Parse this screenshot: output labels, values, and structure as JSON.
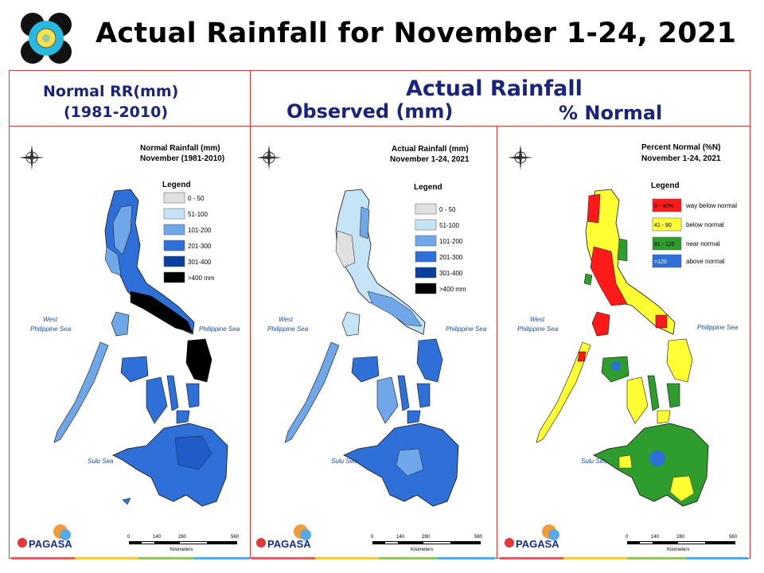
{
  "header": {
    "title": "Actual Rainfall for November 1-24, 2021",
    "logo_icon": "pagasa-emblem-icon"
  },
  "columns": {
    "normal_title_line1": "Normal RR(mm)",
    "normal_title_line2": "(1981-2010)",
    "actual_title": "Actual Rainfall",
    "observed_title": "Observed (mm)",
    "percent_title": "% Normal"
  },
  "maps": [
    {
      "id": "normal",
      "title_line1": "Normal Rainfall (mm)",
      "title_line2": "November (1981-2010)",
      "legend_title": "Legend",
      "legend": [
        {
          "label": "0 - 50",
          "color": "#e0e0e0"
        },
        {
          "label": "51-100",
          "color": "#c6e4f7"
        },
        {
          "label": "101-200",
          "color": "#6fa7e8"
        },
        {
          "label": "201-300",
          "color": "#2f6fd8"
        },
        {
          "label": "301-400",
          "color": "#0b3f9e"
        },
        {
          "label": ">400 mm",
          "color": "#000000"
        }
      ],
      "labels": {
        "west": "West",
        "west2": "Philippine Sea",
        "east": "Philippine Sea",
        "sulu": "Sulu Sea"
      },
      "scale": [
        "0",
        "140",
        "280",
        "560"
      ],
      "scale_unit": "Kilometers",
      "agency": "PAGASA"
    },
    {
      "id": "actual",
      "title_line1": "Actual Rainfall (mm)",
      "title_line2": "November 1-24, 2021",
      "legend_title": "Legend",
      "legend": [
        {
          "label": "0 - 50",
          "color": "#e0e0e0"
        },
        {
          "label": "51-100",
          "color": "#c6e4f7"
        },
        {
          "label": "101-200",
          "color": "#6fa7e8"
        },
        {
          "label": "201-300",
          "color": "#2f6fd8"
        },
        {
          "label": "301-400",
          "color": "#0b3f9e"
        },
        {
          "label": ">400 mm",
          "color": "#000000"
        }
      ],
      "labels": {
        "west": "West",
        "west2": "Philippine Sea",
        "east": "Philippine Sea",
        "sulu": "Sulu Sea"
      },
      "scale": [
        "0",
        "140",
        "280",
        "560"
      ],
      "scale_unit": "Kilometers",
      "agency": "PAGASA"
    },
    {
      "id": "percent",
      "title_line1": "Percent Normal (%N)",
      "title_line2": "November 1-24, 2021",
      "legend_title": "Legend",
      "legend": [
        {
          "range": "0 - 40%",
          "label": "way below normal",
          "color": "#ff1a1a"
        },
        {
          "range": "41 - 80",
          "label": "below normal",
          "color": "#ffff33"
        },
        {
          "range": "81 - 120",
          "label": "near normal",
          "color": "#2e9d2e"
        },
        {
          "range": ">120",
          "label": "above normal",
          "color": "#2f6fd8"
        }
      ],
      "labels": {
        "west": "West",
        "west2": "Philippine Sea",
        "east": "Philippine Sea",
        "sulu": "Sulu Sea"
      },
      "scale": [
        "0",
        "140",
        "280",
        "560"
      ],
      "scale_unit": "Kilometers",
      "agency": "PAGASA"
    }
  ],
  "colors": {
    "frame": "#d43c3c",
    "heading": "#1a237e",
    "bars": [
      "#e06060",
      "#f2c84b",
      "#8fc46a",
      "#5aa9e6"
    ]
  }
}
